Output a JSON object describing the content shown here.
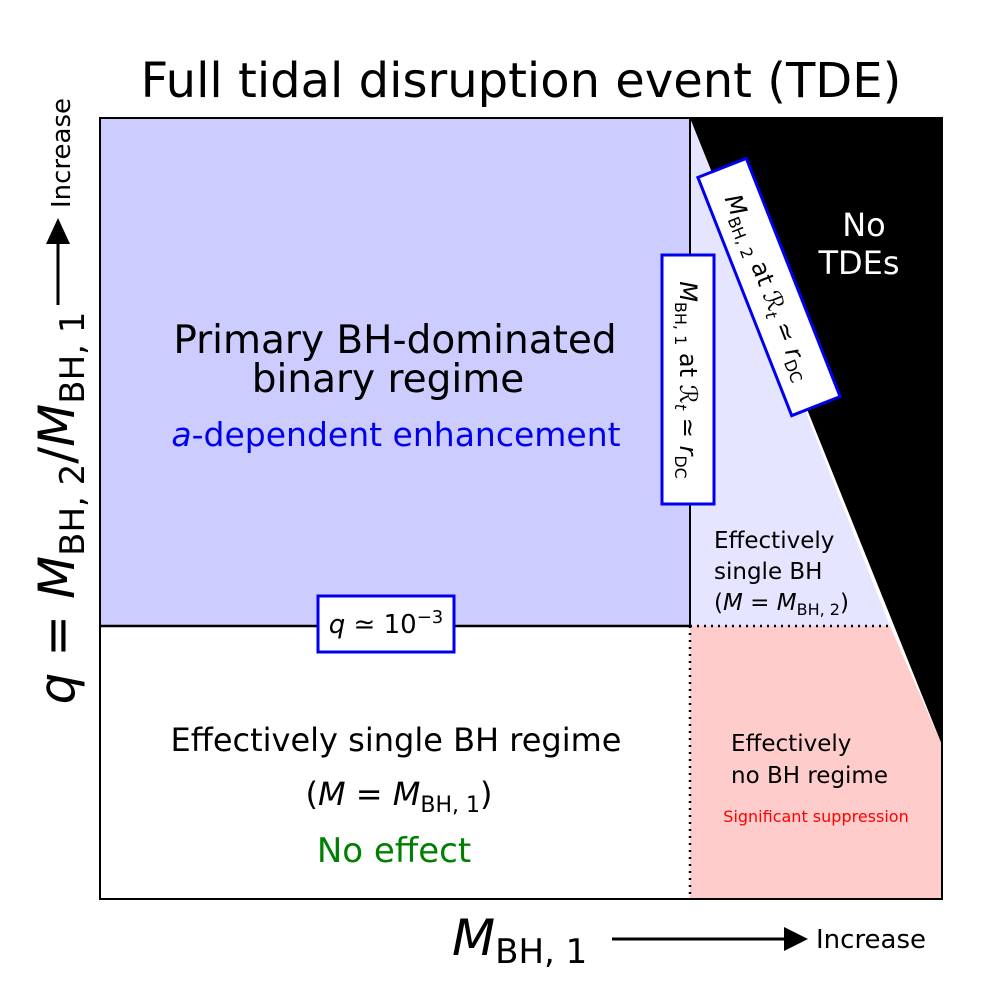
{
  "title": "Full tidal disruption event (TDE)",
  "colors": {
    "primary_region": "#ccccff",
    "single_bh2_region": "#e5e5ff",
    "no_tde_region": "#000000",
    "suppression_region": "#ffcccc",
    "box_border": "#0000ee",
    "enhancement_text": "#0000ee",
    "no_effect_text": "#008000",
    "suppression_text": "#ff0000"
  },
  "y_axis": {
    "label_q": "q",
    "label_equals": " = ",
    "label_m": "M",
    "label_sub2": "BH, 2",
    "label_slash": "/",
    "label_sub1": "BH, 1",
    "increase": "Increase"
  },
  "x_axis": {
    "label_m": "M",
    "label_sub": "BH, 1",
    "increase": "Increase"
  },
  "regions": {
    "primary": {
      "line1": "Primary BH-dominated",
      "line2": "binary regime",
      "note_italic": "a",
      "note_rest": "-dependent enhancement"
    },
    "no_tdes": {
      "line1": "No",
      "line2": "TDEs"
    },
    "single_bh2": {
      "line1": "Effectively",
      "line2": "single BH",
      "line3_open": "(",
      "line3_m": "M",
      "line3_eq": " = ",
      "line3_m2": "M",
      "line3_sub": "BH, 2",
      "line3_close": ")"
    },
    "single_bh1": {
      "line1": "Effectively single BH regime",
      "line2_open": "(",
      "line2_m": "M",
      "line2_eq": " = ",
      "line2_m2": "M",
      "line2_sub": "BH, 1",
      "line2_close": ")",
      "note": "No effect"
    },
    "no_bh": {
      "line1": "Effectively",
      "line2": "no BH regime",
      "note": "Significant suppression"
    }
  },
  "boxes": {
    "q_threshold": {
      "q": "q",
      "approx": " ≃ 10",
      "exp": "−3"
    },
    "mbh1_rdc": {
      "m": "M",
      "sub": "BH, 1",
      "at": " at ",
      "r": "ℛ",
      "rsub": "t",
      "approx": " ≃ ",
      "rdc": "r",
      "rdcsub": "DC"
    },
    "mbh2_rdc": {
      "m": "M",
      "sub": "BH, 2",
      "at": " at ",
      "r": "ℛ",
      "rsub": "t",
      "approx": " ≃ ",
      "rdc": "r",
      "rdcsub": "DC"
    }
  }
}
